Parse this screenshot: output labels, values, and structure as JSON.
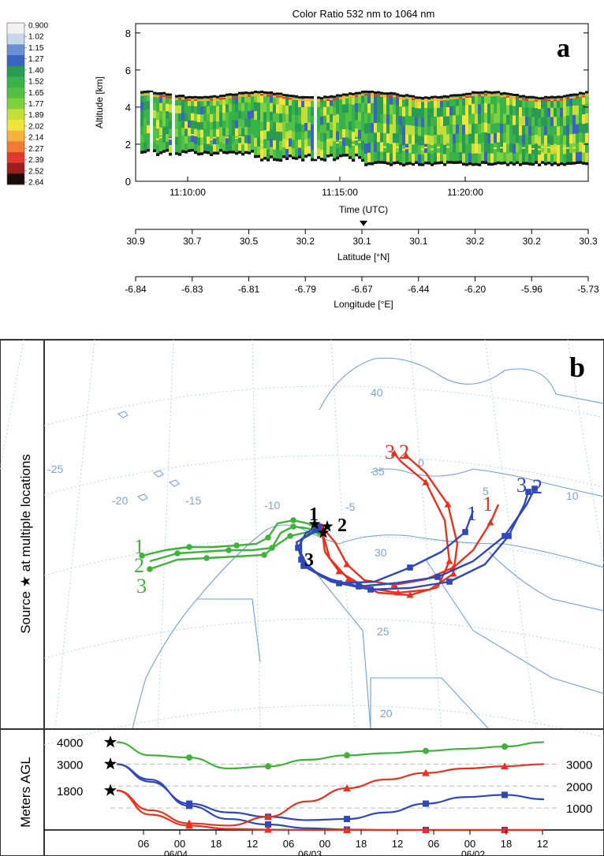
{
  "panel_a": {
    "title": "Color Ratio 532 nm to 1064 nm",
    "panel_label": "a",
    "ylabel": "Altitude [km]",
    "xlabel": "Time (UTC)",
    "colorbar_ticks": [
      "0.900",
      "1.02",
      "1.15",
      "1.27",
      "1.40",
      "1.52",
      "1.65",
      "1.77",
      "1.89",
      "2.02",
      "2.14",
      "2.27",
      "2.39",
      "2.52",
      "2.64"
    ],
    "colorbar_colors": [
      "#f2f2f2",
      "#c9d7ea",
      "#6b8fd0",
      "#3b64c2",
      "#2a9b55",
      "#3ab24a",
      "#54c043",
      "#7ed03c",
      "#c5df3a",
      "#efe53d",
      "#f6b23c",
      "#f07a36",
      "#e03a2e",
      "#9c1e1e",
      "#1a0a0a"
    ],
    "y_ticks": [
      "0",
      "2",
      "4",
      "6",
      "8"
    ],
    "time_ticks": [
      "11:10:00",
      "11:15:00",
      "11:20:00"
    ],
    "lat_label": "Latitude [°N]",
    "lat_ticks": [
      "30.9",
      "30.7",
      "30.5",
      "30.2",
      "30.1",
      "30.1",
      "30.2",
      "30.2",
      "30.3"
    ],
    "lon_label": "Longitude [°E]",
    "lon_ticks": [
      "-6.84",
      "-6.83",
      "-6.81",
      "-6.79",
      "-6.67",
      "-6.44",
      "-6.20",
      "-5.96",
      "-5.73"
    ]
  },
  "panel_b": {
    "panel_label": "b",
    "side_label": "Source ★ at multiple locations",
    "lat_labels": [
      "40",
      "35",
      "30",
      "25",
      "20"
    ],
    "lon_labels": [
      "-25",
      "-20",
      "-15",
      "-10",
      "-5",
      "0",
      "5",
      "10"
    ],
    "green_numbers": [
      "1",
      "2",
      "3"
    ],
    "black_numbers": [
      "1",
      "2",
      "3"
    ],
    "red_numbers": [
      "3",
      "2",
      "1"
    ],
    "blue_numbers": [
      "3",
      "2",
      "1"
    ]
  },
  "panel_c": {
    "ylabel": "Meters AGL",
    "left_levels": [
      "4000",
      "3000",
      "1800"
    ],
    "right_ticks": [
      "3000",
      "2000",
      "1000"
    ],
    "hour_ticks": [
      "06",
      "00",
      "18",
      "12",
      "06",
      "00",
      "18",
      "12",
      "06",
      "00",
      "18",
      "12"
    ],
    "date_ticks": [
      "06/04",
      "06/03",
      "06/02"
    ]
  },
  "chart_data": [
    {
      "type": "heatmap",
      "title": "Color Ratio 532 nm to 1064 nm",
      "xlabel": "Time (UTC)",
      "ylabel": "Altitude [km]",
      "ylim": [
        0,
        8.5
      ],
      "x_ticks": [
        "11:10:00",
        "11:15:00",
        "11:20:00"
      ],
      "layer_top_km": 4.7,
      "layer_base_km": [
        1.4,
        1.1,
        0.9
      ]
    },
    {
      "type": "line",
      "ylabel": "Meters AGL",
      "ylim": [
        0,
        4200
      ],
      "x_order": "backward in time",
      "series": [
        {
          "color": "green",
          "values": [
            4000,
            3400,
            3300,
            2800,
            2900,
            3200,
            3400,
            3500,
            3600,
            3700,
            3800,
            4000
          ]
        },
        {
          "color": "blue",
          "values": [
            3000,
            2300,
            1100,
            500,
            250,
            80,
            20,
            0,
            0,
            0,
            0,
            0
          ]
        },
        {
          "color": "blue",
          "values": [
            3000,
            2200,
            1200,
            800,
            600,
            450,
            500,
            800,
            1200,
            1500,
            1600,
            1400
          ]
        },
        {
          "color": "red",
          "values": [
            1800,
            700,
            200,
            50,
            20,
            0,
            0,
            0,
            0,
            0,
            0,
            0
          ]
        },
        {
          "color": "red",
          "values": [
            1800,
            900,
            300,
            200,
            600,
            1300,
            1900,
            2300,
            2600,
            2800,
            2900,
            3000
          ]
        }
      ]
    }
  ]
}
